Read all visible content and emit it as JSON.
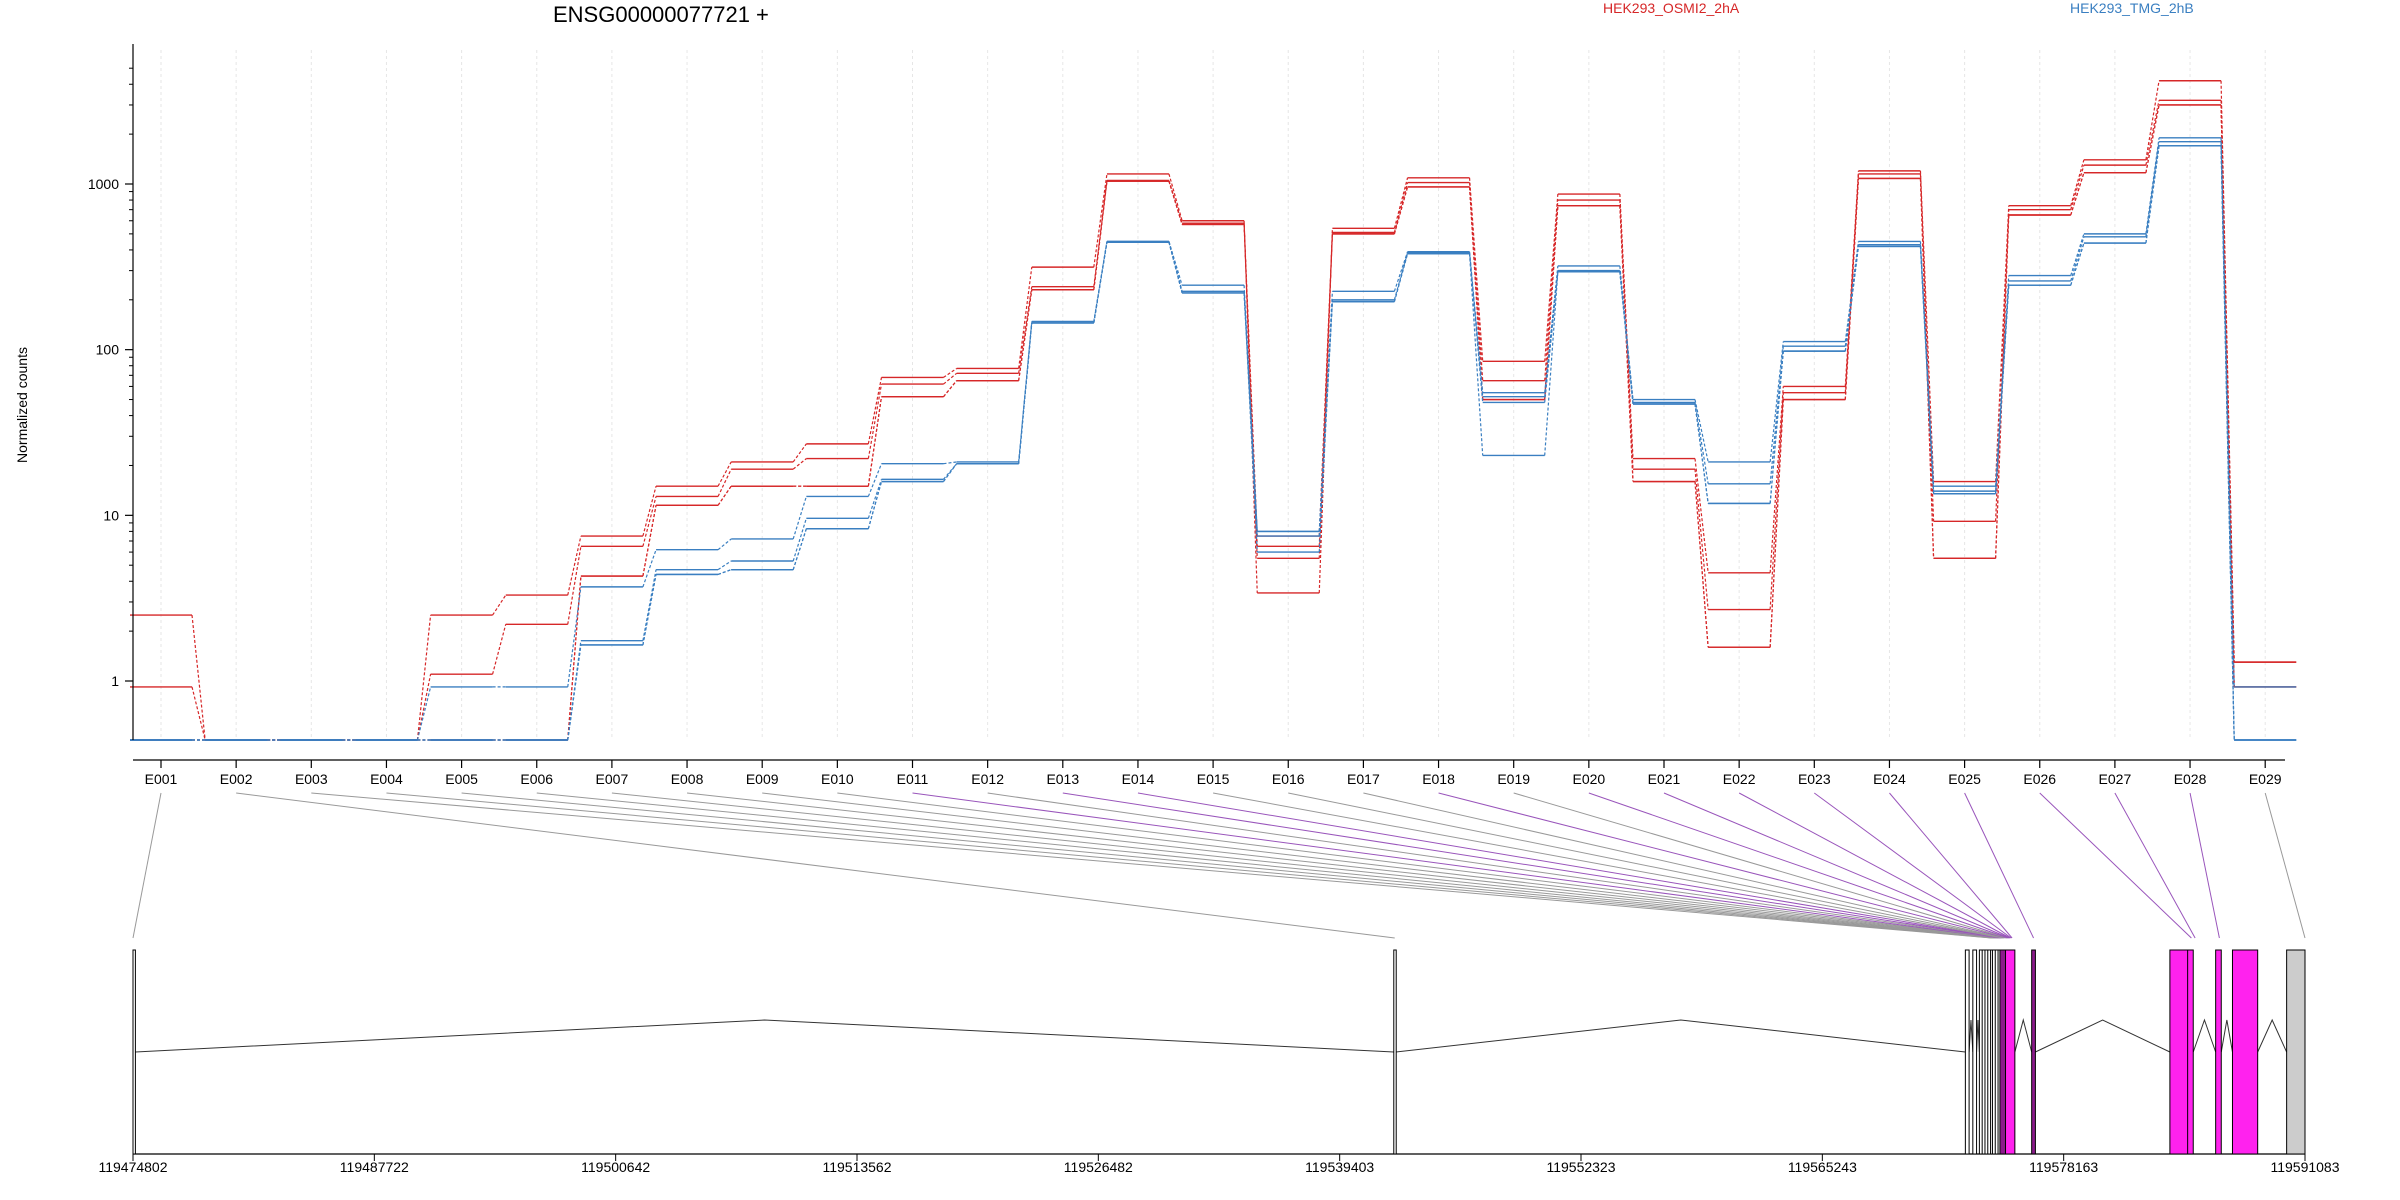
{
  "chart_data": {
    "type": "line",
    "title": "ENSG00000077721 +",
    "ylabel": "Normalized counts",
    "y_scale": "log",
    "yticks": [
      1,
      10,
      100,
      1000
    ],
    "ylim": [
      0.5,
      5000
    ],
    "categories": [
      "E001",
      "E002",
      "E003",
      "E004",
      "E005",
      "E006",
      "E007",
      "E008",
      "E009",
      "E010",
      "E011",
      "E012",
      "E013",
      "E014",
      "E015",
      "E016",
      "E017",
      "E018",
      "E019",
      "E020",
      "E021",
      "E022",
      "E023",
      "E024",
      "E025",
      "E026",
      "E027",
      "E028",
      "E029"
    ],
    "legend": [
      {
        "name": "HEK293_OSMI2_2hA",
        "color": "#d62728"
      },
      {
        "name": "HEK293_TMG_2hB",
        "color": "#3a7fc1"
      }
    ],
    "series_groups": [
      {
        "group": "HEK293_OSMI2_2hA",
        "color": "#d62728",
        "replicates": [
          [
            2.5,
            0.5,
            0.5,
            0.5,
            2.5,
            3.3,
            7.5,
            15,
            21,
            27,
            68,
            77,
            315,
            1150,
            600,
            3.4,
            540,
            1090,
            85,
            870,
            22,
            4.5,
            60,
            1200,
            16,
            740,
            1400,
            4200,
            1.3
          ],
          [
            0.95,
            0.5,
            0.5,
            0.5,
            1.1,
            2.2,
            6.5,
            13,
            19,
            22,
            62,
            72,
            240,
            1050,
            580,
            5.5,
            510,
            1020,
            65,
            800,
            19,
            2.7,
            55,
            1150,
            9.2,
            700,
            1300,
            3200,
            1.3
          ],
          [
            0.5,
            0.5,
            0.5,
            0.5,
            0.5,
            0.5,
            4.3,
            11.5,
            15,
            15,
            52,
            65,
            230,
            1040,
            570,
            6.5,
            500,
            960,
            50,
            740,
            16,
            1.6,
            50,
            1080,
            5.5,
            650,
            1170,
            3000,
            0.95
          ],
          [
            0.5,
            0.5,
            0.5,
            0.5,
            0.5,
            0.5,
            4.3,
            11.5,
            15,
            15,
            52,
            65,
            230,
            1040,
            570,
            7.5,
            500,
            960,
            50,
            740,
            16,
            1.6,
            50,
            1080,
            5.5,
            650,
            1170,
            3000,
            0.95
          ]
        ]
      },
      {
        "group": "HEK293_TMG_2hB",
        "color": "#3a7fc1",
        "replicates": [
          [
            0.5,
            0.5,
            0.5,
            0.5,
            0.95,
            0.95,
            3.7,
            6.2,
            7.2,
            13,
            20.5,
            21,
            148,
            450,
            245,
            8,
            225,
            390,
            55,
            320,
            50,
            21,
            112,
            450,
            15,
            280,
            500,
            1900,
            0.95
          ],
          [
            0.5,
            0.5,
            0.5,
            0.5,
            0.5,
            0.5,
            1.75,
            4.7,
            5.3,
            9.6,
            16.5,
            20.5,
            145,
            450,
            225,
            6,
            200,
            385,
            52,
            300,
            48,
            15.5,
            105,
            430,
            14,
            260,
            480,
            1800,
            0.5
          ],
          [
            0.5,
            0.5,
            0.5,
            0.5,
            0.5,
            0.5,
            1.65,
            4.4,
            4.7,
            8.3,
            16,
            20.5,
            145,
            445,
            220,
            7.5,
            195,
            380,
            23,
            295,
            47,
            11.8,
            98,
            420,
            13.5,
            245,
            440,
            1700,
            0.5
          ],
          [
            0.5,
            0.5,
            0.5,
            0.5,
            0.5,
            0.5,
            1.65,
            4.4,
            4.7,
            8.3,
            16,
            20.5,
            145,
            445,
            220,
            8,
            195,
            380,
            48,
            295,
            47,
            11.8,
            98,
            420,
            13.5,
            245,
            440,
            1700,
            0.5
          ]
        ]
      }
    ],
    "coordinate_axis": {
      "ticks": [
        "119474802",
        "119487722",
        "119500642",
        "119513562",
        "119526482",
        "119539403",
        "119552323",
        "119565243",
        "119578163",
        "119591083"
      ],
      "range": [
        119474802,
        119591083
      ]
    },
    "exon_bodies": [
      {
        "start": 119474802,
        "end": 119474930,
        "fill": "#ffffff",
        "dividers": []
      },
      {
        "start": 119542300,
        "end": 119542430,
        "fill": "#ffffff",
        "dividers": []
      },
      {
        "start": 119572900,
        "end": 119573100,
        "fill": "#ffffff",
        "dividers": []
      },
      {
        "start": 119573300,
        "end": 119573500,
        "fill": "#ffffff",
        "dividers": []
      },
      {
        "start": 119573650,
        "end": 119574800,
        "fill": "#ffffff",
        "dividers": [
          119573800,
          119573950,
          119574100,
          119574250,
          119574350,
          119574500,
          119574650
        ]
      },
      {
        "start": 119574750,
        "end": 119575050,
        "fill": "#8b1a8b",
        "dividers": []
      },
      {
        "start": 119575050,
        "end": 119575550,
        "fill": "#ff22ee",
        "dividers": []
      },
      {
        "start": 119576450,
        "end": 119576650,
        "fill": "#8b1a8b",
        "dividers": []
      },
      {
        "start": 119583850,
        "end": 119585100,
        "fill": "#ff22ee",
        "dividers": [
          119584800
        ]
      },
      {
        "start": 119586300,
        "end": 119586600,
        "fill": "#ff22ee",
        "dividers": []
      },
      {
        "start": 119587200,
        "end": 119588550,
        "fill": "#ff22ee",
        "dividers": []
      },
      {
        "start": 119590100,
        "end": 119591083,
        "fill": "#cccccc",
        "dividers": []
      }
    ],
    "introns": [
      [
        119474930,
        119542300
      ],
      [
        119542430,
        119572900
      ],
      [
        119573100,
        119573300
      ],
      [
        119573500,
        119573650
      ],
      [
        119575550,
        119576450
      ],
      [
        119576650,
        119583850
      ],
      [
        119585100,
        119586300
      ],
      [
        119586600,
        119587200
      ],
      [
        119588550,
        119590100
      ]
    ],
    "exon_links": [
      {
        "exon": "E001",
        "at": 119474802,
        "color": "#999999"
      },
      {
        "exon": "E002",
        "at": 119542350,
        "color": "#999999"
      },
      {
        "exon": "E003",
        "at": 119574300,
        "color": "#999999"
      },
      {
        "exon": "E004",
        "at": 119574350,
        "color": "#999999"
      },
      {
        "exon": "E005",
        "at": 119574400,
        "color": "#999999"
      },
      {
        "exon": "E006",
        "at": 119574450,
        "color": "#999999"
      },
      {
        "exon": "E007",
        "at": 119574500,
        "color": "#999999"
      },
      {
        "exon": "E008",
        "at": 119574550,
        "color": "#999999"
      },
      {
        "exon": "E009",
        "at": 119574600,
        "color": "#999999"
      },
      {
        "exon": "E010",
        "at": 119574650,
        "color": "#999999"
      },
      {
        "exon": "E011",
        "at": 119574700,
        "color": "#9955bb"
      },
      {
        "exon": "E012",
        "at": 119574750,
        "color": "#999999"
      },
      {
        "exon": "E013",
        "at": 119574800,
        "color": "#9955bb"
      },
      {
        "exon": "E014",
        "at": 119574850,
        "color": "#9955bb"
      },
      {
        "exon": "E015",
        "at": 119574900,
        "color": "#999999"
      },
      {
        "exon": "E016",
        "at": 119574950,
        "color": "#999999"
      },
      {
        "exon": "E017",
        "at": 119575000,
        "color": "#999999"
      },
      {
        "exon": "E018",
        "at": 119575100,
        "color": "#9955bb"
      },
      {
        "exon": "E019",
        "at": 119575150,
        "color": "#999999"
      },
      {
        "exon": "E020",
        "at": 119575200,
        "color": "#9955bb"
      },
      {
        "exon": "E021",
        "at": 119575250,
        "color": "#9955bb"
      },
      {
        "exon": "E022",
        "at": 119575300,
        "color": "#9955bb"
      },
      {
        "exon": "E023",
        "at": 119575350,
        "color": "#9955bb"
      },
      {
        "exon": "E024",
        "at": 119575400,
        "color": "#9955bb"
      },
      {
        "exon": "E025",
        "at": 119576550,
        "color": "#9955bb"
      },
      {
        "exon": "E026",
        "at": 119585000,
        "color": "#9955bb"
      },
      {
        "exon": "E027",
        "at": 119585200,
        "color": "#9955bb"
      },
      {
        "exon": "E028",
        "at": 119586500,
        "color": "#9955bb"
      },
      {
        "exon": "E029",
        "at": 119591083,
        "color": "#999999"
      }
    ]
  }
}
